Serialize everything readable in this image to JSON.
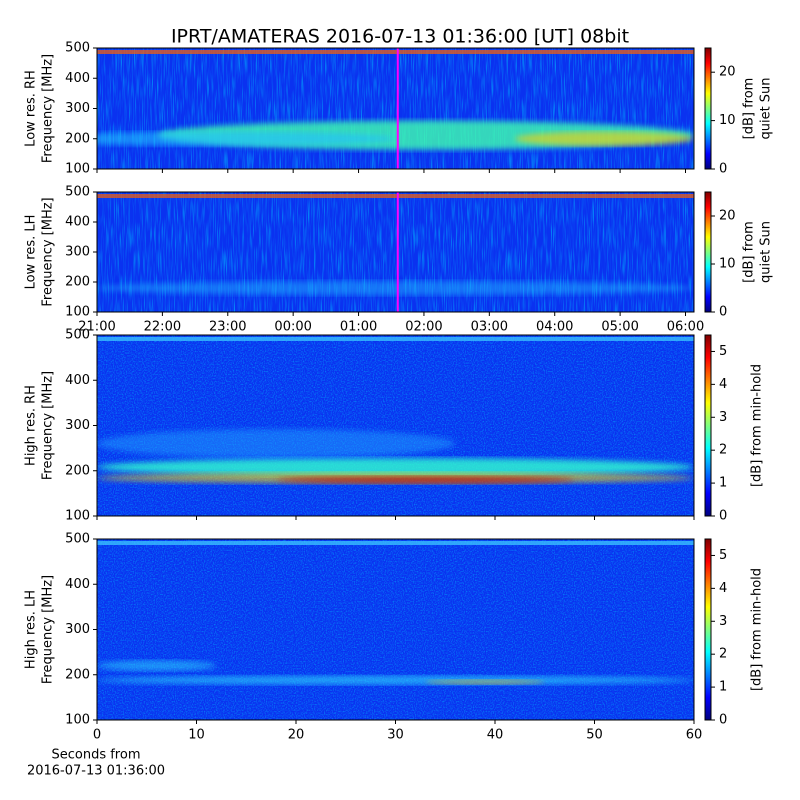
{
  "title": "IPRT/AMATERAS 2016-07-13 01:36:00 [UT]   08bit",
  "chart_data": [
    {
      "type": "heatmap",
      "ylabel": [
        "Low res. RH",
        "Frequency [MHz]"
      ],
      "ylim": [
        100,
        500
      ],
      "yticks": [
        100,
        200,
        300,
        400,
        500
      ],
      "xlim": [
        21,
        30.13
      ],
      "marker_x": 25.6,
      "marker_color": "#ff00ff",
      "colorbar": {
        "label": [
          "[dB] from",
          "quiet Sun"
        ],
        "clim": [
          0,
          25
        ],
        "ticks": [
          0,
          10,
          20
        ]
      }
    },
    {
      "type": "heatmap",
      "ylabel": [
        "Low res. LH",
        "Frequency [MHz]"
      ],
      "ylim": [
        100,
        500
      ],
      "yticks": [
        100,
        200,
        300,
        400,
        500
      ],
      "xlim": [
        21,
        30.13
      ],
      "marker_x": 25.6,
      "marker_color": "#ff00ff",
      "xticks": [
        {
          "value": 21,
          "label": "21:00"
        },
        {
          "value": 22,
          "label": "22:00"
        },
        {
          "value": 23,
          "label": "23:00"
        },
        {
          "value": 24,
          "label": "00:00"
        },
        {
          "value": 25,
          "label": "01:00"
        },
        {
          "value": 26,
          "label": "02:00"
        },
        {
          "value": 27,
          "label": "03:00"
        },
        {
          "value": 28,
          "label": "04:00"
        },
        {
          "value": 29,
          "label": "05:00"
        },
        {
          "value": 30,
          "label": "06:00"
        }
      ],
      "colorbar": {
        "label": [
          "[dB] from",
          "quiet Sun"
        ],
        "clim": [
          0,
          25
        ],
        "ticks": [
          0,
          10,
          20
        ]
      }
    },
    {
      "type": "heatmap",
      "ylabel": [
        "High res. RH",
        "Frequency [MHz]"
      ],
      "ylim": [
        100,
        500
      ],
      "yticks": [
        100,
        200,
        300,
        400,
        500
      ],
      "xlim": [
        0,
        60
      ],
      "colorbar": {
        "label": [
          "[dB] from min-hold"
        ],
        "clim": [
          0,
          5.5
        ],
        "ticks": [
          0,
          1,
          2,
          3,
          4,
          5
        ]
      }
    },
    {
      "type": "heatmap",
      "ylabel": [
        "High res. LH",
        "Frequency [MHz]"
      ],
      "ylim": [
        100,
        500
      ],
      "yticks": [
        100,
        200,
        300,
        400,
        500
      ],
      "xlim": [
        0,
        60
      ],
      "xticks": [
        0,
        10,
        20,
        30,
        40,
        50,
        60
      ],
      "xlabel": [
        "Seconds from",
        "2016-07-13 01:36:00"
      ],
      "colorbar": {
        "label": [
          "[dB] from min-hold"
        ],
        "clim": [
          0,
          5.5
        ],
        "ticks": [
          0,
          1,
          2,
          3,
          4,
          5
        ]
      }
    }
  ]
}
